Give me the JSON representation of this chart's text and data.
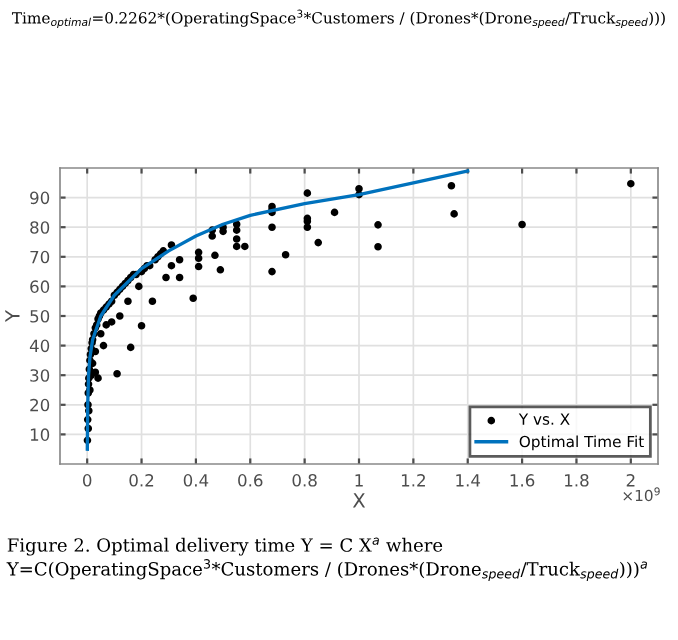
{
  "chart_data": {
    "type": "scatter",
    "xlabel": "X",
    "ylabel": "Y",
    "annotations": [
      "Time$_{optimal}$=0.2262*(OperatingSpace$^{3}$*Customers / (Drones*(Drone$_{speed}$/Truck$_{speed}$)))",
      "×10$^{9}$",
      "Figure 2. Optimal delivery time Y = C X$^{a}$ where Y=C(OperatingSpace$^{3}$*Customers / (Drones*(Drone$_{speed}$/Truck$_{speed}$)))$^{a}$"
    ],
    "series": [
      {
        "name": "Y vs. X",
        "color": "#000000",
        "marker": "circle",
        "x": [
          0.001,
          0.002,
          0.003,
          0.004,
          0.005,
          0.006,
          0.008,
          0.01,
          0.012,
          0.015,
          0.018,
          0.02,
          0.025,
          0.03,
          0.035,
          0.04,
          0.045,
          0.05,
          0.06,
          0.07,
          0.08,
          0.09,
          0.1,
          0.11,
          0.12,
          0.13,
          0.14,
          0.15,
          0.16,
          0.17,
          0.18,
          0.2,
          0.21,
          0.22,
          0.23,
          0.25,
          0.26,
          0.27,
          0.28,
          0.31,
          0.31,
          0.34,
          0.34,
          0.39,
          0.41,
          0.41,
          0.41,
          0.46,
          0.46,
          0.47,
          0.49,
          0.5,
          0.5,
          0.55,
          0.55,
          0.55,
          0.55,
          0.58,
          0.68,
          0.68,
          0.68,
          0.68,
          0.68,
          0.73,
          0.81,
          0.81,
          0.81,
          0.81,
          0.85,
          0.91,
          1.0,
          1.0,
          1.07,
          1.07,
          1.34,
          1.35,
          1.6,
          2.0,
          0.004,
          0.006,
          0.01,
          0.015,
          0.02,
          0.03,
          0.05,
          0.07,
          0.09,
          0.11,
          0.16,
          0.2,
          0.03,
          0.04,
          0.06,
          0.12,
          0.15,
          0.19,
          0.24,
          0.29
        ],
        "values": [
          8,
          15,
          20,
          24,
          27,
          29,
          32,
          35,
          37,
          39,
          41,
          42,
          44,
          46,
          47,
          49,
          50,
          51,
          52,
          53,
          54,
          55,
          57,
          58,
          59,
          60,
          61,
          62,
          63,
          64,
          64,
          65,
          66,
          67,
          67,
          69,
          70,
          71,
          72,
          74,
          67,
          69,
          63,
          56,
          71.5,
          69.5,
          66.7,
          79,
          77,
          70.5,
          65.6,
          80,
          78.6,
          81,
          79,
          76,
          73.5,
          73.5,
          87,
          86,
          85,
          80,
          65,
          70.7,
          91.5,
          83,
          82,
          80,
          74.8,
          85,
          93,
          91,
          80.8,
          73.4,
          94,
          84.5,
          80.9,
          94.7,
          12,
          18,
          25,
          30,
          34,
          38,
          44,
          47,
          48,
          30.5,
          39.4,
          46.7,
          31,
          29,
          40,
          50,
          55,
          60,
          55,
          63
        ]
      },
      {
        "name": "Optimal Time Fit",
        "type": "line",
        "color": "#0072bd",
        "marker": "none",
        "line_style": "solid",
        "x": [
          0.0005,
          0.002,
          0.005,
          0.01,
          0.02,
          0.05,
          0.1,
          0.2,
          0.3,
          0.4,
          0.5,
          0.6,
          0.8,
          1.0,
          1.2,
          1.4
        ],
        "values": [
          5,
          20,
          30,
          36,
          42,
          50,
          57,
          66,
          72,
          77,
          81,
          84,
          88,
          91,
          95,
          99
        ]
      }
    ],
    "xlim": [
      -0.1,
      2.1
    ],
    "ylim": [
      0,
      100
    ],
    "xticks": [
      0,
      0.2,
      0.4,
      0.6,
      0.8,
      1,
      1.2,
      1.4,
      1.6,
      1.8,
      2
    ],
    "yticks": [
      10,
      20,
      30,
      40,
      50,
      60,
      70,
      80,
      90
    ],
    "grid": true,
    "legend": "bottom right"
  }
}
